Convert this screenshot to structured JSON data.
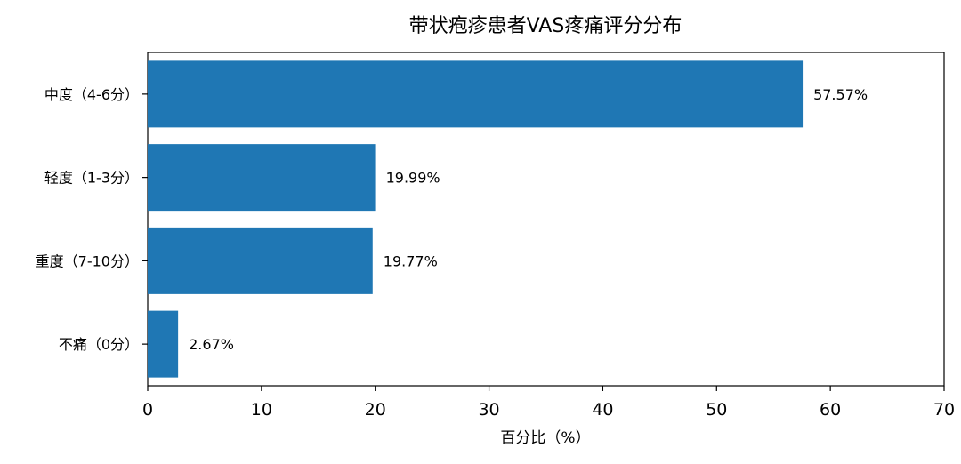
{
  "chart_data": {
    "type": "bar",
    "orientation": "horizontal",
    "title": "带状疱疹患者VAS疼痛评分分布",
    "xlabel": "百分比（%）",
    "ylabel": "",
    "xlim": [
      0,
      70
    ],
    "xticks": [
      0,
      10,
      20,
      30,
      40,
      50,
      60,
      70
    ],
    "categories": [
      "中度（4-6分）",
      "轻度（1-3分）",
      "重度（7-10分）",
      "不痛（0分）"
    ],
    "values": [
      57.57,
      19.99,
      19.77,
      2.67
    ],
    "value_labels": [
      "57.57%",
      "19.99%",
      "19.77%",
      "2.67%"
    ],
    "bar_color": "#1f77b4",
    "grid": false,
    "legend": "none"
  }
}
